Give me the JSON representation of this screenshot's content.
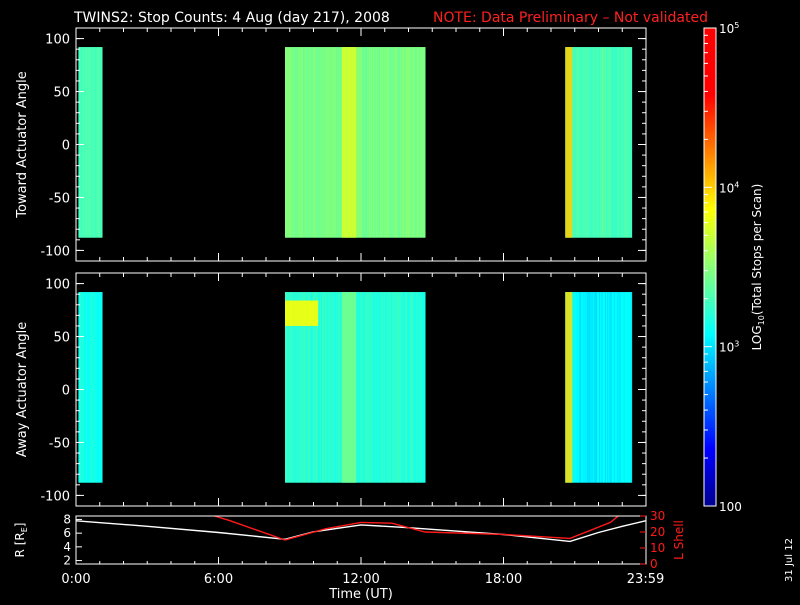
{
  "title": {
    "main": "TWINS2: Stop Counts:  4 Aug (day 217), 2008",
    "note": "NOTE: Data Preliminary – Not validated",
    "note_color": "#ff2020"
  },
  "side_date": "31 Jul 12",
  "colors": {
    "background": "#000000",
    "axes": "#ffffff",
    "lshell": "#ff1a1a",
    "radius": "#ffffff"
  },
  "colorbar": {
    "label": "LOG10(Total Stops per Scan)",
    "label_prefix": "LOG",
    "label_sub": "10",
    "label_suffix": "(Total Stops per Scan)",
    "ticks": [
      {
        "value": 100,
        "label": "100"
      },
      {
        "value": 1000,
        "label": "10",
        "exp": "3"
      },
      {
        "value": 10000,
        "label": "10",
        "exp": "4"
      },
      {
        "value": 100000,
        "label": "10",
        "exp": "5"
      }
    ]
  },
  "chart_data": [
    {
      "type": "heatmap",
      "ylabel": "Toward Actuator Angle",
      "xlim": [
        0,
        24
      ],
      "ylim": [
        -110,
        110
      ],
      "yticks": [
        -100,
        -50,
        0,
        50,
        100
      ],
      "data_ylim": [
        -88,
        92
      ],
      "zlim_log": [
        2,
        5
      ],
      "segments": [
        {
          "start": 0.1,
          "end": 1.1,
          "base_log": 3.3,
          "slope": 0
        },
        {
          "start": 8.8,
          "end": 14.7,
          "base_log": 3.45,
          "slope": 0.1
        },
        {
          "start": 20.6,
          "end": 23.4,
          "base_log": 3.3,
          "slope": 0
        }
      ],
      "bright_bands": [
        {
          "start": 20.6,
          "end": 20.9,
          "log": 4.0
        },
        {
          "start": 11.2,
          "end": 11.8,
          "log": 3.75
        }
      ]
    },
    {
      "type": "heatmap",
      "ylabel": "Away Actuator Angle",
      "xlim": [
        0,
        24
      ],
      "ylim": [
        -110,
        110
      ],
      "yticks": [
        -100,
        -50,
        0,
        50,
        100
      ],
      "data_ylim": [
        -88,
        92
      ],
      "zlim_log": [
        2,
        5
      ],
      "segments": [
        {
          "start": 0.1,
          "end": 1.1,
          "base_log": 3.15,
          "slope": 0
        },
        {
          "start": 8.8,
          "end": 14.7,
          "base_log": 3.2,
          "slope": 0.1
        },
        {
          "start": 20.6,
          "end": 23.4,
          "base_log": 3.05,
          "slope": 0
        }
      ],
      "bright_bands": [
        {
          "start": 20.6,
          "end": 20.9,
          "log": 3.95
        },
        {
          "start": 11.2,
          "end": 11.8,
          "log": 3.45
        }
      ],
      "hot_spot": {
        "x_start": 8.8,
        "x_end": 10.2,
        "y_center": 72,
        "y_half": 12,
        "log": 3.85
      }
    },
    {
      "type": "line",
      "xlabel": "Time (UT)",
      "xlim": [
        0,
        24
      ],
      "xticks": [
        {
          "value": 0,
          "label": "0:00"
        },
        {
          "value": 6,
          "label": "6:00"
        },
        {
          "value": 12,
          "label": "12:00"
        },
        {
          "value": 18,
          "label": "18:00"
        },
        {
          "value": 23.98,
          "label": "23:59"
        }
      ],
      "left_axis": {
        "ylim": [
          1.5,
          8.5
        ],
        "yticks": [
          2,
          4,
          6,
          8
        ]
      },
      "right_axis": {
        "label": "L Shell",
        "ylim": [
          0,
          30
        ],
        "yticks": [
          0,
          10,
          20,
          30
        ]
      },
      "series": [
        {
          "axis": "left",
          "x": [
            0,
            3,
            6,
            8.8,
            10,
            12,
            14,
            16,
            18,
            20.8,
            22,
            23,
            23.98
          ],
          "y": [
            7.8,
            7.0,
            6.1,
            5.1,
            6.2,
            7.2,
            6.8,
            6.3,
            5.8,
            4.8,
            6.1,
            7.0,
            7.8
          ]
        },
        {
          "axis": "right",
          "x": [
            5.4,
            6.5,
            8.8,
            10.5,
            12,
            13.3,
            14.7,
            18,
            20.8,
            22.5,
            23
          ],
          "y": [
            32,
            27,
            15,
            22,
            26,
            25.5,
            20,
            18.5,
            16,
            26,
            32
          ]
        }
      ]
    }
  ]
}
